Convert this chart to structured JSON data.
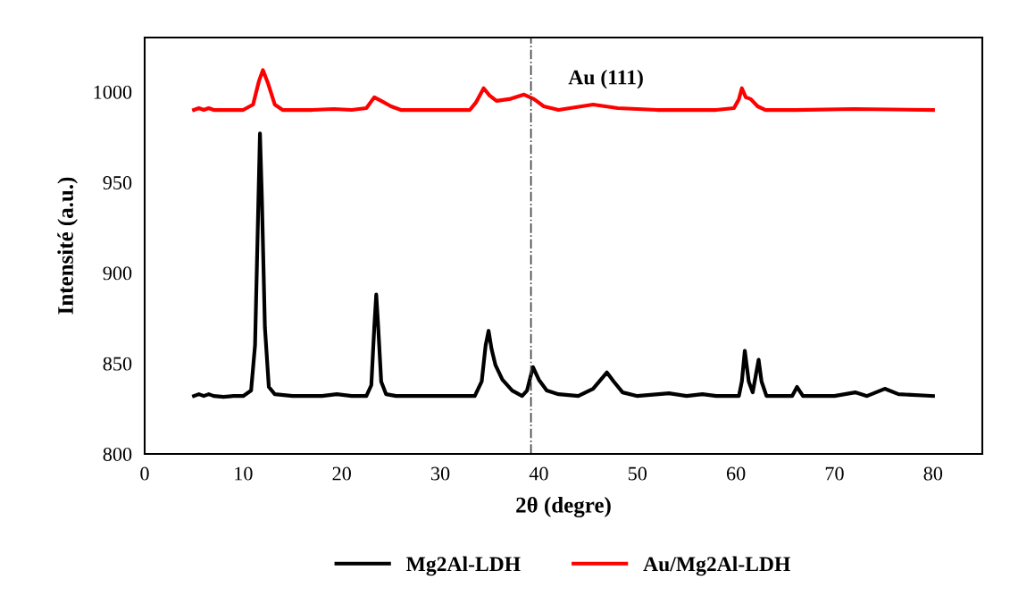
{
  "chart_data": {
    "type": "line",
    "xlabel": "2θ (degre)",
    "ylabel": "Intensité (a.u.)",
    "xlim": [
      0,
      85
    ],
    "ylim": [
      800,
      1030
    ],
    "xticks": [
      0,
      10,
      20,
      30,
      40,
      50,
      60,
      70,
      80
    ],
    "yticks": [
      800,
      850,
      900,
      950,
      1000
    ],
    "grid": false,
    "legend": "bottom",
    "marker": "none",
    "line_style": "solid",
    "ref_lines": [
      {
        "axis": "x",
        "value": 39.2,
        "label": "Au (111)",
        "color": "#404040",
        "line_style": "dashdot"
      }
    ],
    "series": [
      {
        "name": "Mg2Al-LDH",
        "color": "#000000",
        "x": [
          5,
          5.5,
          6,
          6.5,
          7,
          8,
          9,
          10,
          10.8,
          11.2,
          11.5,
          11.7,
          11.9,
          12.2,
          12.6,
          13.2,
          15,
          18,
          19.5,
          21,
          22.5,
          23,
          23.3,
          23.5,
          23.7,
          24,
          24.5,
          25.5,
          28,
          31,
          33.5,
          34.2,
          34.6,
          34.9,
          35.2,
          35.6,
          36.3,
          37.3,
          38.3,
          38.8,
          39.4,
          40,
          40.8,
          42,
          44,
          45.5,
          46.9,
          47.6,
          48.5,
          50,
          53.2,
          55,
          56.6,
          58,
          60.3,
          60.6,
          60.9,
          61.3,
          61.7,
          62.0,
          62.3,
          62.6,
          63.1,
          65,
          65.7,
          66.2,
          66.8,
          70,
          72.1,
          73.3,
          75.1,
          76.5,
          80
        ],
        "values": [
          832,
          833,
          832,
          833,
          832,
          831.5,
          832,
          832,
          835,
          860,
          930,
          977,
          940,
          870,
          837,
          833,
          832,
          832,
          833,
          832,
          832,
          838,
          870,
          888,
          870,
          840,
          833,
          832,
          832,
          832,
          832,
          840,
          860,
          868,
          858,
          849,
          841,
          835,
          832,
          835,
          848,
          841,
          835,
          833,
          832,
          836,
          845,
          840,
          834,
          832,
          833.5,
          832,
          833,
          832,
          832,
          840,
          857,
          840,
          834,
          843,
          852,
          840,
          832,
          832,
          832,
          837,
          832,
          832,
          834,
          832,
          836,
          833,
          832
        ]
      },
      {
        "name": "Au/Mg2Al-LDH",
        "color": "#ff0000",
        "x": [
          5,
          5.5,
          6,
          6.5,
          7,
          8,
          9,
          10,
          11,
          11.6,
          12.0,
          12.5,
          13.2,
          14,
          17,
          19.2,
          21,
          22.5,
          23.3,
          24,
          25,
          26,
          29,
          33,
          33.6,
          34.4,
          35,
          35.7,
          37,
          38.5,
          39.5,
          40.5,
          42,
          45.5,
          48,
          52,
          58,
          59.8,
          60.3,
          60.6,
          61.0,
          61.5,
          62.2,
          63,
          66,
          72,
          80
        ],
        "values": [
          990,
          991,
          990,
          991,
          990,
          990,
          990,
          990,
          993,
          1006,
          1012,
          1005,
          993,
          990,
          990,
          990.5,
          990,
          991,
          997,
          995,
          992,
          990,
          990,
          990,
          994,
          1002,
          998,
          995,
          996,
          998.5,
          996,
          992,
          990,
          993,
          991,
          990,
          990,
          991,
          996,
          1002,
          997,
          996,
          992,
          990,
          990,
          990.5,
          990
        ]
      }
    ]
  }
}
